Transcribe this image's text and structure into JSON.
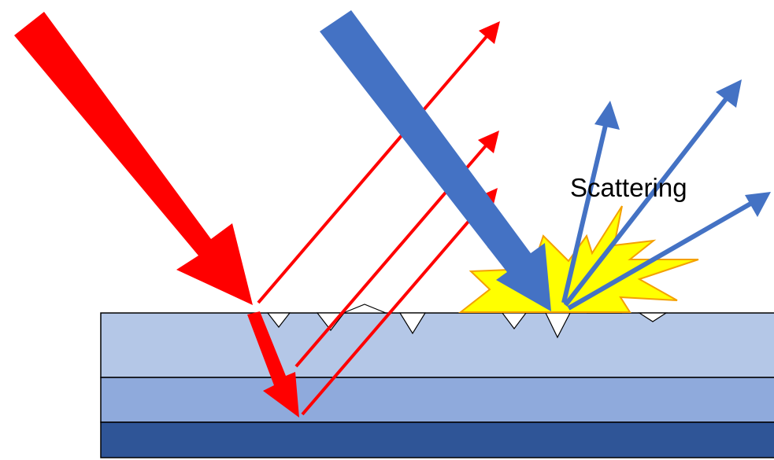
{
  "labels": {
    "scattering": "Scattering"
  },
  "colors": {
    "background": "#ffffff",
    "red_beam": "#ff0000",
    "blue_beam": "#4472c4",
    "burst_fill": "#ffff00",
    "burst_outline": "#f4a000",
    "layer_top": "#b4c7e7",
    "layer_middle": "#8faadc",
    "layer_bottom": "#2f5597",
    "layer_outline": "#000000",
    "defect_fill": "#ffffff",
    "label_text": "#000000"
  },
  "elements": {
    "incident_red_arrow": "thick-arrow",
    "transmitted_red_arrow": "thick-arrow",
    "reflected_red_rays": "thin-arrow",
    "incident_blue_arrow": "thick-arrow",
    "scattered_blue_rays": "arrow",
    "scattering_burst": "burst",
    "surface_defects": "triangle"
  }
}
